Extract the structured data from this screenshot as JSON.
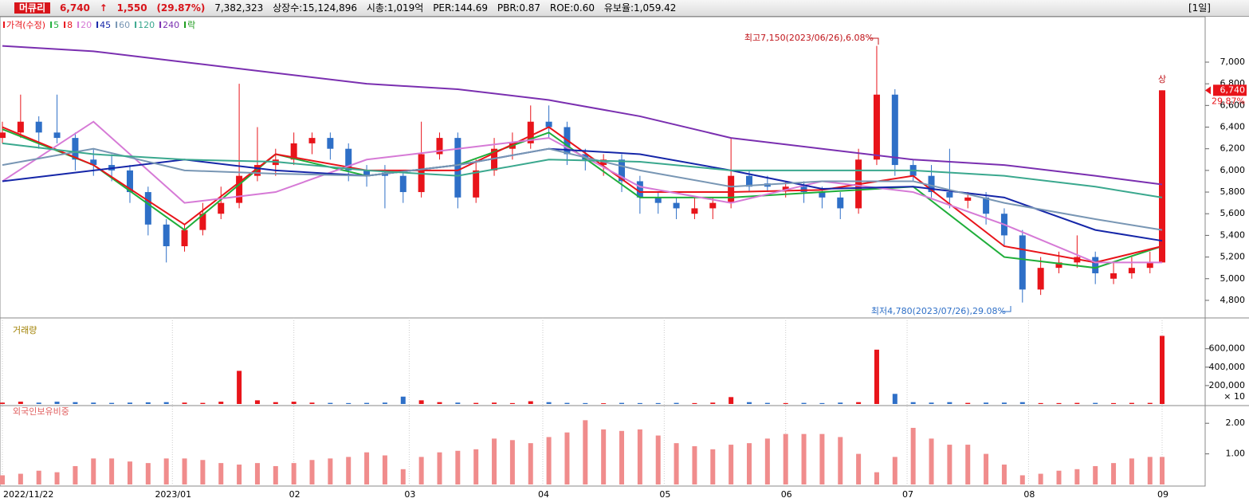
{
  "header": {
    "name": "머큐리",
    "price": "6,740",
    "change": "1,550",
    "rate": "(29.87%)",
    "volume": "7,382,323",
    "shares": "상장수:15,124,896",
    "cap": "시총:1,019억",
    "per": "PER:144.69",
    "pbr": "PBR:0.87",
    "roe": "ROE:0.60",
    "reserve": "유보율:1,059.42",
    "period": "[1일]"
  },
  "chart_data": [
    {
      "type": "candlestick",
      "name": "가격(수정)",
      "lock_label": "락",
      "lock_color": "#1a9a1a",
      "up_color": "#e8141a",
      "down_color": "#2e6fc7",
      "annotations": [
        "최고7,150(2023/06/26),6.08%",
        "최저4,780(2023/07/26),29.08%"
      ],
      "limit_up": "상",
      "price_box": "6,740",
      "change_box": "29.87%",
      "xlim": [
        0,
        191
      ],
      "xticks": [
        {
          "value": 0,
          "label": "2022/11/22"
        },
        {
          "value": 28,
          "label": "2023/01"
        },
        {
          "value": 48,
          "label": "02"
        },
        {
          "value": 67,
          "label": "03"
        },
        {
          "value": 89,
          "label": "04"
        },
        {
          "value": 109,
          "label": "05"
        },
        {
          "value": 129,
          "label": "06"
        },
        {
          "value": 149,
          "label": "07"
        },
        {
          "value": 169,
          "label": "08"
        },
        {
          "value": 191,
          "label": "09"
        }
      ],
      "ylim": [
        4645,
        7412
      ],
      "yticks": [
        {
          "value": 4800,
          "label": "4,800"
        },
        {
          "value": 5000,
          "label": "5,000"
        },
        {
          "value": 5200,
          "label": "5,200"
        },
        {
          "value": 5400,
          "label": "5,400"
        },
        {
          "value": 5600,
          "label": "5,600"
        },
        {
          "value": 5800,
          "label": "5,800"
        },
        {
          "value": 6000,
          "label": "6,000"
        },
        {
          "value": 6200,
          "label": "6,200"
        },
        {
          "value": 6400,
          "label": "6,400"
        },
        {
          "value": 6600,
          "label": "6,600"
        },
        {
          "value": 6800,
          "label": "6,800"
        },
        {
          "value": 7000,
          "label": "7,000"
        }
      ],
      "x": [
        0,
        3,
        6,
        9,
        12,
        15,
        18,
        21,
        24,
        27,
        30,
        33,
        36,
        39,
        42,
        45,
        48,
        51,
        54,
        57,
        60,
        63,
        66,
        69,
        72,
        75,
        78,
        81,
        84,
        87,
        90,
        93,
        96,
        99,
        102,
        105,
        108,
        111,
        114,
        117,
        120,
        123,
        126,
        129,
        132,
        135,
        138,
        141,
        144,
        147,
        150,
        153,
        156,
        159,
        162,
        165,
        168,
        171,
        174,
        177,
        180,
        183,
        186,
        189,
        191
      ],
      "open": [
        6300,
        6350,
        6450,
        6350,
        6300,
        6100,
        6050,
        6000,
        5800,
        5500,
        5300,
        5450,
        5600,
        5700,
        5950,
        6050,
        6100,
        6250,
        6300,
        6200,
        6000,
        5980,
        5950,
        5800,
        6150,
        6300,
        5750,
        6000,
        6200,
        6250,
        6450,
        6400,
        6150,
        6050,
        6100,
        5900,
        5750,
        5700,
        5600,
        5650,
        5700,
        5950,
        5880,
        5820,
        5850,
        5800,
        5750,
        5650,
        6100,
        6700,
        6050,
        5950,
        5800,
        5720,
        5750,
        5600,
        5400,
        4900,
        5100,
        5150,
        5200,
        5000,
        5050,
        5100,
        5150
      ],
      "high": [
        6450,
        6700,
        6500,
        6700,
        6350,
        6200,
        6150,
        6050,
        5850,
        5550,
        5500,
        5700,
        5850,
        6800,
        6400,
        6200,
        6350,
        6350,
        6350,
        6250,
        6050,
        6050,
        6000,
        6450,
        6350,
        6350,
        6100,
        6300,
        6350,
        6600,
        6600,
        6450,
        6200,
        6150,
        6150,
        5950,
        5800,
        5750,
        5750,
        5750,
        6300,
        6000,
        5950,
        5900,
        5900,
        5850,
        5800,
        6200,
        7150,
        6750,
        6100,
        6050,
        6200,
        5800,
        5800,
        5650,
        5450,
        5200,
        5250,
        5400,
        5250,
        5150,
        5200,
        5250,
        6740
      ],
      "low": [
        6250,
        6300,
        6200,
        6250,
        6000,
        5950,
        5900,
        5700,
        5400,
        5150,
        5250,
        5400,
        5550,
        5650,
        5900,
        5950,
        6050,
        6150,
        6100,
        5900,
        5850,
        5650,
        5700,
        5750,
        6100,
        5650,
        5700,
        5950,
        6100,
        6200,
        6300,
        6050,
        6000,
        5950,
        5800,
        5600,
        5600,
        5550,
        5550,
        5550,
        5650,
        5800,
        5800,
        5750,
        5700,
        5650,
        5550,
        5600,
        6050,
        5950,
        5900,
        5750,
        5650,
        5650,
        5500,
        5300,
        4780,
        4850,
        5050,
        5100,
        4950,
        4950,
        5000,
        5050,
        5150
      ],
      "close": [
        6350,
        6450,
        6350,
        6300,
        6100,
        6050,
        6000,
        5800,
        5500,
        5300,
        5450,
        5600,
        5700,
        5950,
        6050,
        6100,
        6250,
        6300,
        6200,
        6000,
        5950,
        5950,
        5800,
        6150,
        6300,
        5750,
        6000,
        6200,
        6250,
        6450,
        6400,
        6150,
        6100,
        6100,
        5900,
        5750,
        5700,
        5650,
        5650,
        5700,
        5950,
        5850,
        5850,
        5850,
        5800,
        5750,
        5650,
        6100,
        6700,
        6050,
        5950,
        5800,
        5750,
        5750,
        5600,
        5400,
        4900,
        5100,
        5150,
        5200,
        5050,
        5050,
        5100,
        5150,
        6740
      ],
      "lines": [
        {
          "name": "5",
          "color": "#1fae3a",
          "x": [
            0,
            15,
            30,
            45,
            60,
            75,
            90,
            105,
            120,
            135,
            150,
            165,
            180,
            191
          ],
          "values": [
            6380,
            6050,
            5450,
            6150,
            5950,
            6050,
            6350,
            5750,
            5750,
            5800,
            5850,
            5200,
            5100,
            5300
          ]
        },
        {
          "name": "8",
          "color": "#e8141a",
          "x": [
            0,
            15,
            30,
            45,
            60,
            75,
            90,
            105,
            120,
            135,
            150,
            165,
            180,
            191
          ],
          "values": [
            6400,
            6050,
            5500,
            6150,
            6000,
            6000,
            6400,
            5800,
            5800,
            5820,
            5950,
            5300,
            5150,
            5300
          ]
        },
        {
          "name": "20",
          "color": "#d67ad6",
          "x": [
            0,
            15,
            30,
            45,
            60,
            75,
            90,
            105,
            120,
            135,
            150,
            165,
            180,
            191
          ],
          "values": [
            5900,
            6450,
            5700,
            5800,
            6100,
            6200,
            6300,
            5850,
            5700,
            5900,
            5800,
            5500,
            5150,
            5150
          ]
        },
        {
          "name": "45",
          "color": "#1526a8",
          "x": [
            0,
            15,
            30,
            45,
            60,
            75,
            90,
            105,
            120,
            135,
            150,
            165,
            180,
            191
          ],
          "values": [
            5900,
            6000,
            6100,
            6000,
            5950,
            6050,
            6200,
            6150,
            6000,
            5830,
            5850,
            5750,
            5450,
            5350
          ]
        },
        {
          "name": "60",
          "color": "#7896b4",
          "x": [
            0,
            15,
            30,
            45,
            60,
            75,
            90,
            105,
            120,
            135,
            150,
            165,
            180,
            191
          ],
          "values": [
            6050,
            6200,
            6000,
            5970,
            5950,
            6050,
            6200,
            6000,
            5850,
            5900,
            5900,
            5700,
            5550,
            5450
          ]
        },
        {
          "name": "120",
          "color": "#3aa88e",
          "x": [
            0,
            15,
            30,
            45,
            60,
            75,
            90,
            105,
            120,
            135,
            150,
            165,
            180,
            191
          ],
          "values": [
            6250,
            6150,
            6100,
            6080,
            6000,
            5950,
            6100,
            6080,
            6000,
            6000,
            6000,
            5950,
            5850,
            5750
          ]
        },
        {
          "name": "240",
          "color": "#7a2fb0",
          "x": [
            0,
            15,
            30,
            45,
            60,
            75,
            90,
            105,
            120,
            135,
            150,
            165,
            180,
            191
          ],
          "values": [
            7150,
            7100,
            7000,
            6900,
            6800,
            6750,
            6650,
            6500,
            6300,
            6200,
            6100,
            6050,
            5950,
            5870
          ]
        }
      ]
    },
    {
      "type": "bar",
      "title": "거래량",
      "unit": "× 10",
      "ylim": [
        0,
        900000
      ],
      "yticks": [
        {
          "value": 200000,
          "label": "200,000"
        },
        {
          "value": 400000,
          "label": "400,000"
        },
        {
          "value": 600000,
          "label": "600,000"
        }
      ],
      "values": [
        15000,
        25000,
        15000,
        25000,
        20000,
        15000,
        12000,
        15000,
        18000,
        20000,
        15000,
        12000,
        25000,
        360000,
        40000,
        20000,
        25000,
        15000,
        12000,
        10000,
        12000,
        15000,
        80000,
        40000,
        20000,
        15000,
        12000,
        15000,
        10000,
        30000,
        20000,
        12000,
        10000,
        8000,
        12000,
        10000,
        10000,
        12000,
        10000,
        15000,
        75000,
        20000,
        12000,
        10000,
        12000,
        10000,
        15000,
        20000,
        590000,
        110000,
        20000,
        15000,
        20000,
        12000,
        15000,
        15000,
        20000,
        10000,
        10000,
        12000,
        12000,
        10000,
        12000,
        12000,
        740000
      ]
    },
    {
      "type": "bar",
      "title": "외국인보유비중",
      "color": "#f08c8c",
      "ylim": [
        0,
        2.5
      ],
      "yticks": [
        {
          "value": 1,
          "label": "1.00"
        },
        {
          "value": 2,
          "label": "2.00"
        }
      ],
      "values": [
        0.3,
        0.35,
        0.45,
        0.4,
        0.6,
        0.85,
        0.85,
        0.75,
        0.7,
        0.85,
        0.85,
        0.8,
        0.7,
        0.65,
        0.7,
        0.6,
        0.7,
        0.8,
        0.85,
        0.9,
        1.05,
        0.95,
        0.5,
        0.9,
        1.05,
        1.1,
        1.15,
        1.5,
        1.45,
        1.35,
        1.55,
        1.7,
        2.1,
        1.8,
        1.75,
        1.8,
        1.6,
        1.35,
        1.25,
        1.15,
        1.3,
        1.35,
        1.5,
        1.65,
        1.65,
        1.65,
        1.55,
        1.0,
        0.4,
        0.9,
        1.85,
        1.5,
        1.3,
        1.3,
        1.0,
        0.65,
        0.3,
        0.35,
        0.45,
        0.5,
        0.6,
        0.7,
        0.85,
        0.9,
        0.9
      ]
    }
  ]
}
